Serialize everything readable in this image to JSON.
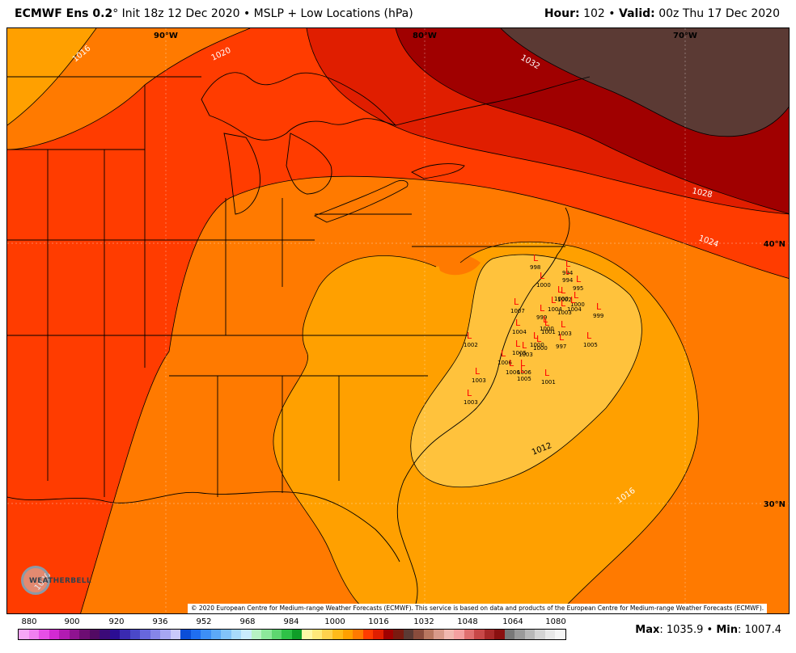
{
  "header": {
    "model": "ECMWF Ens 0.2",
    "degree": "°",
    "init": " Init 18z 12 Dec 2020 • MSLP + Low Locations (hPa)",
    "hour_label": "Hour:",
    "hour_value": "102",
    "sep": " • ",
    "valid_label": "Valid:",
    "valid_value": "00z Thu 17 Dec 2020"
  },
  "map": {
    "lon_labels": [
      "90°W",
      "80°W",
      "70°W"
    ],
    "lat_labels": [
      "40°N",
      "30°N"
    ],
    "isobar_labels": [
      "1016",
      "1020",
      "1032",
      "1028",
      "1024",
      "1012",
      "1016",
      "1020"
    ],
    "fill_colors": {
      "p1008_1012": "#ffc23c",
      "p1012_1016": "#ffa000",
      "p1016_1020": "#ff7a00",
      "p1020_1024": "#ff3c00",
      "p1024_1028": "#e01e00",
      "p1028_1032": "#a00000",
      "p1032_plus": "#5b3a34"
    },
    "low_marker": "L",
    "low_values": [
      "998",
      "1000",
      "994",
      "994",
      "995",
      "1000",
      "1007",
      "1002",
      "1000",
      "1004",
      "1004",
      "1003",
      "999",
      "1004",
      "999",
      "1000",
      "1001",
      "1000",
      "997",
      "1003",
      "1002",
      "1005",
      "1005",
      "1000",
      "1006",
      "1003",
      "1006",
      "1006",
      "1005",
      "1001",
      "1003",
      "1003"
    ],
    "copyright": "© 2020 European Centre for Medium-range Weather Forecasts (ECMWF). This service is based on data and products of the European Centre for Medium-range Weather Forecasts (ECMWF).",
    "logo_text": "WEATHERBELL"
  },
  "colorbar": {
    "ticks": [
      "880",
      "900",
      "920",
      "936",
      "952",
      "968",
      "984",
      "1000",
      "1016",
      "1032",
      "1048",
      "1064",
      "1080"
    ],
    "colors": [
      "#f7a6f7",
      "#f080f0",
      "#e64fe6",
      "#d22ad2",
      "#b21bb2",
      "#8f1390",
      "#6d0d73",
      "#520a63",
      "#3b0a78",
      "#2b0d93",
      "#3a2ab0",
      "#4a48c9",
      "#6767dc",
      "#8585e8",
      "#a6a6f2",
      "#c9c9fa",
      "#0b4ed8",
      "#1f6ef0",
      "#3d8ff5",
      "#5ca9f7",
      "#82c3f9",
      "#a8dbfb",
      "#c9ecfd",
      "#b7f2c3",
      "#8de89b",
      "#5ed670",
      "#2fc247",
      "#0f9e28",
      "#fff8a6",
      "#ffe97a",
      "#ffd24d",
      "#ffbb1a",
      "#ffa000",
      "#ff7a00",
      "#ff3c00",
      "#e01e00",
      "#a00000",
      "#7a1a10",
      "#5b3a34",
      "#8a4c3c",
      "#b87760",
      "#d89a8a",
      "#f0b8b0",
      "#f3a0a0",
      "#e07070",
      "#c84848",
      "#a82828",
      "#8a1010",
      "#787878",
      "#9a9a9a",
      "#b8b8b8",
      "#d4d4d4",
      "#e8e8e8",
      "#f6f6f6"
    ]
  },
  "stats": {
    "max_label": "Max",
    "max_value": "1035.9",
    "sep": " • ",
    "min_label": "Min",
    "min_value": "1007.4"
  }
}
